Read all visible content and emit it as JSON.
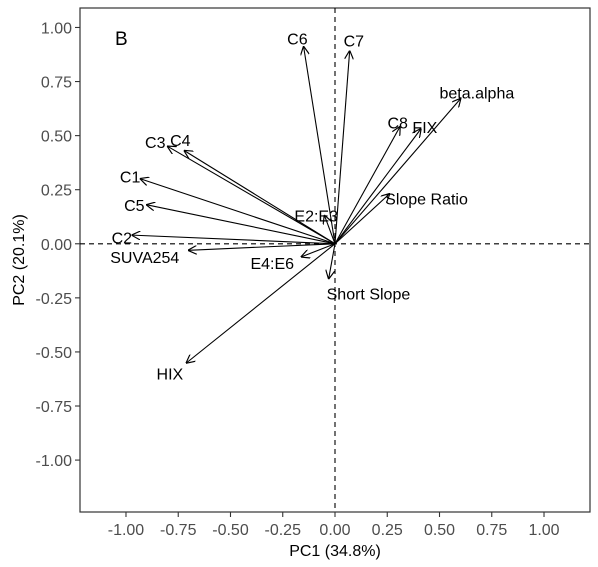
{
  "chart_data": {
    "type": "scatter",
    "panel_label": "B",
    "xlabel": "PC1 (34.8%)",
    "ylabel": "PC2 (20.1%)",
    "xlim": [
      -1.22,
      1.22
    ],
    "ylim": [
      -1.24,
      1.09
    ],
    "xticks": [
      -1.0,
      -0.75,
      -0.5,
      -0.25,
      0.0,
      0.25,
      0.5,
      0.75,
      1.0
    ],
    "xtick_labels": [
      "-1.00",
      "-0.75",
      "-0.50",
      "-0.25",
      "0.00",
      "0.25",
      "0.50",
      "0.75",
      "1.00"
    ],
    "yticks": [
      1.0,
      0.75,
      0.5,
      0.25,
      0.0,
      -0.25,
      -0.5,
      -0.75,
      -1.0
    ],
    "ytick_labels": [
      "1.00",
      "0.75",
      "0.50",
      "0.25",
      "0.00",
      "-0.25",
      "-0.50",
      "-0.75",
      "-1.00"
    ],
    "reference_lines": {
      "x": 0,
      "y": 0,
      "style": "dashed"
    },
    "grid": false,
    "legend": "none",
    "vectors": [
      {
        "label": "C6",
        "x": -0.15,
        "y": 0.91,
        "label_x": -0.18,
        "label_y": 0.95,
        "anchor": "middle"
      },
      {
        "label": "C7",
        "x": 0.07,
        "y": 0.89,
        "label_x": 0.09,
        "label_y": 0.94,
        "anchor": "middle"
      },
      {
        "label": "beta.alpha",
        "x": 0.6,
        "y": 0.67,
        "label_x": 0.5,
        "label_y": 0.7,
        "anchor": "start"
      },
      {
        "label": "C8",
        "x": 0.31,
        "y": 0.54,
        "label_x": 0.3,
        "label_y": 0.56,
        "anchor": "middle"
      },
      {
        "label": "FIX",
        "x": 0.41,
        "y": 0.53,
        "label_x": 0.43,
        "label_y": 0.54,
        "anchor": "middle"
      },
      {
        "label": "C3",
        "x": -0.8,
        "y": 0.45,
        "label_x": -0.86,
        "label_y": 0.47,
        "anchor": "middle"
      },
      {
        "label": "C4",
        "x": -0.72,
        "y": 0.43,
        "label_x": -0.74,
        "label_y": 0.48,
        "anchor": "middle"
      },
      {
        "label": "C1",
        "x": -0.93,
        "y": 0.3,
        "label_x": -0.98,
        "label_y": 0.31,
        "anchor": "middle"
      },
      {
        "label": "Slope Ratio",
        "x": 0.26,
        "y": 0.23,
        "label_x": 0.24,
        "label_y": 0.21,
        "anchor": "start"
      },
      {
        "label": "C5",
        "x": -0.9,
        "y": 0.18,
        "label_x": -0.96,
        "label_y": 0.18,
        "anchor": "middle"
      },
      {
        "label": "E2:E3",
        "x": -0.05,
        "y": 0.13,
        "label_x": -0.09,
        "label_y": 0.13,
        "anchor": "middle"
      },
      {
        "label": "C2",
        "x": -0.97,
        "y": 0.04,
        "label_x": -1.02,
        "label_y": 0.03,
        "anchor": "middle"
      },
      {
        "label": "SUVA254",
        "x": -0.7,
        "y": -0.03,
        "label_x": -0.91,
        "label_y": -0.06,
        "anchor": "middle"
      },
      {
        "label": "E4:E6",
        "x": -0.16,
        "y": -0.06,
        "label_x": -0.3,
        "label_y": -0.09,
        "anchor": "middle"
      },
      {
        "label": "Short Slope",
        "x": -0.03,
        "y": -0.16,
        "label_x": -0.04,
        "label_y": -0.23,
        "anchor": "start"
      },
      {
        "label": "HIX",
        "x": -0.71,
        "y": -0.55,
        "label_x": -0.79,
        "label_y": -0.6,
        "anchor": "middle"
      }
    ]
  }
}
